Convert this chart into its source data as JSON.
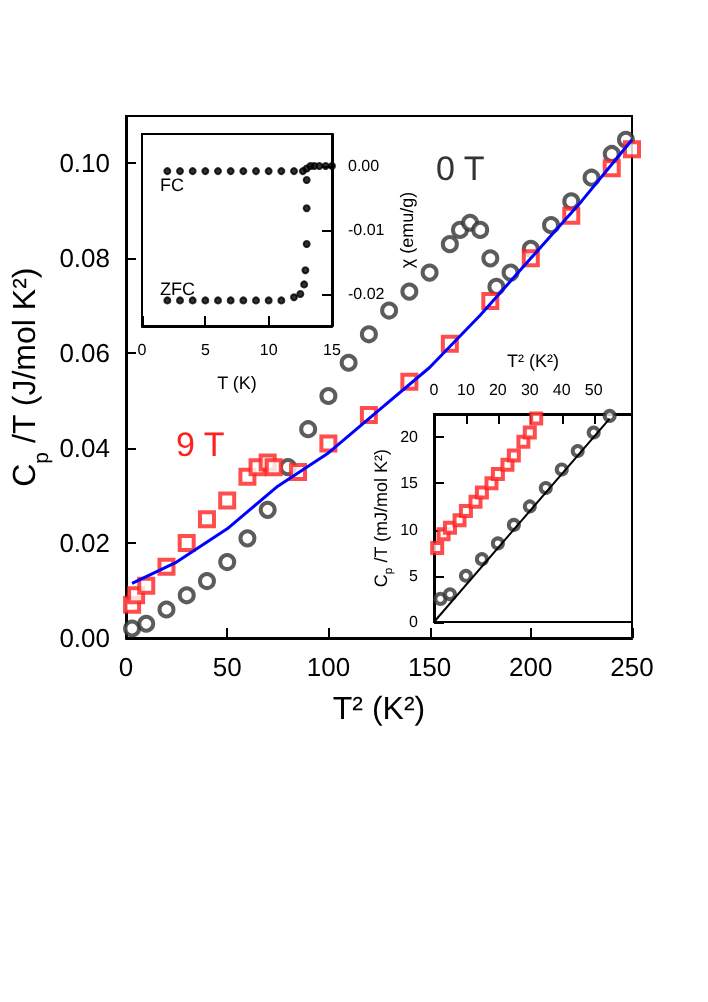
{
  "chart_data": [
    {
      "type": "scatter",
      "xlabel": "T² (K²)",
      "ylabel": "C$_{p}$ /T (J/mol K²)",
      "xlim": [
        0,
        250
      ],
      "ylim": [
        0,
        0.11
      ],
      "xticks": [
        0,
        50,
        100,
        150,
        200,
        250
      ],
      "yticks": [
        {
          "value": 0,
          "label": "0.00"
        },
        {
          "value": 0.02,
          "label": "0.02"
        },
        {
          "value": 0.04,
          "label": "0.04"
        },
        {
          "value": 0.06,
          "label": "0.06"
        },
        {
          "value": 0.08,
          "label": "0.08"
        },
        {
          "value": 0.1,
          "label": "0.10"
        }
      ],
      "grid": false,
      "legend": false,
      "series": [
        {
          "name": "0 T",
          "color": "#333333",
          "marker": "circle",
          "x": [
            3,
            10,
            20,
            30,
            40,
            50,
            60,
            70,
            80,
            90,
            100,
            110,
            120,
            130,
            140,
            150,
            160,
            165,
            170,
            175,
            180,
            183,
            190,
            200,
            210,
            220,
            230,
            240,
            247
          ],
          "values": [
            0.002,
            0.003,
            0.006,
            0.009,
            0.012,
            0.016,
            0.021,
            0.027,
            0.036,
            0.044,
            0.051,
            0.058,
            0.064,
            0.069,
            0.073,
            0.077,
            0.083,
            0.086,
            0.0875,
            0.086,
            0.08,
            0.074,
            0.077,
            0.082,
            0.087,
            0.092,
            0.097,
            0.102,
            0.105
          ]
        },
        {
          "name": "9 T",
          "color": "#ff2020",
          "marker": "square",
          "x": [
            3,
            5,
            10,
            20,
            30,
            40,
            50,
            60,
            65,
            70,
            73,
            85,
            100,
            120,
            140,
            160,
            180,
            200,
            220,
            240,
            250
          ],
          "values": [
            0.007,
            0.009,
            0.011,
            0.015,
            0.02,
            0.025,
            0.029,
            0.034,
            0.036,
            0.037,
            0.036,
            0.035,
            0.041,
            0.047,
            0.054,
            0.062,
            0.071,
            0.08,
            0.089,
            0.099,
            0.103
          ]
        },
        {
          "type": "line",
          "color": "#0000ff",
          "marker": "none",
          "x": [
            3,
            25,
            50,
            75,
            100,
            125,
            150,
            175,
            200,
            225,
            250
          ],
          "values": [
            0.0115,
            0.016,
            0.023,
            0.032,
            0.039,
            0.048,
            0.057,
            0.068,
            0.08,
            0.092,
            0.105
          ]
        }
      ]
    },
    {
      "type": "scatter",
      "xlabel": "T (K)",
      "ylabel": "χ (emu/g)",
      "xlim": [
        0,
        15
      ],
      "ylim": [
        -0.025,
        0.005
      ],
      "xticks": [
        0,
        5,
        10,
        15
      ],
      "yticks": [
        {
          "value": 0,
          "label": "0.00"
        },
        {
          "value": -0.01,
          "label": "-0.01"
        },
        {
          "value": -0.02,
          "label": "-0.02"
        }
      ],
      "grid": false,
      "legend": false,
      "series": [
        {
          "name": "FC",
          "color": "#000000",
          "marker": "circle",
          "x": [
            2,
            3,
            4,
            5,
            6,
            7,
            8,
            9,
            10,
            11,
            12,
            12.7,
            13,
            13.3,
            13.6,
            14,
            14.5,
            15
          ],
          "values": [
            -0.0008,
            -0.0008,
            -0.0008,
            -0.0008,
            -0.0008,
            -0.0008,
            -0.0008,
            -0.0008,
            -0.0008,
            -0.0008,
            -0.0008,
            -0.0008,
            -0.0004,
            0,
            0,
            0,
            0,
            0
          ]
        },
        {
          "name": "ZFC",
          "color": "#000000",
          "marker": "circle",
          "x": [
            2,
            3,
            4,
            5,
            6,
            7,
            8,
            9,
            10,
            11,
            12,
            12.5,
            12.8,
            12.9,
            13,
            13,
            13
          ],
          "values": [
            -0.021,
            -0.021,
            -0.021,
            -0.021,
            -0.021,
            -0.021,
            -0.021,
            -0.021,
            -0.021,
            -0.021,
            -0.0205,
            -0.02,
            -0.0185,
            -0.0163,
            -0.0122,
            -0.0066,
            -0.0022
          ]
        }
      ]
    },
    {
      "type": "scatter",
      "xlabel": "T² (K²)",
      "ylabel": "C$_{p}$ /T (mJ/mol K²)",
      "xlim": [
        0,
        62
      ],
      "ylim": [
        0,
        22.5
      ],
      "xticks": [
        0,
        10,
        20,
        30,
        40,
        50
      ],
      "yticks": [
        0,
        5,
        10,
        15,
        20
      ],
      "grid": false,
      "legend": false,
      "series": [
        {
          "color": "#333333",
          "marker": "circle",
          "x": [
            2,
            5,
            10,
            15,
            20,
            25,
            30,
            35,
            40,
            45,
            50,
            55
          ],
          "values": [
            2.5,
            3,
            5,
            6.8,
            8.5,
            10.5,
            12.5,
            14.5,
            16.5,
            18.5,
            20.5,
            22.3
          ]
        },
        {
          "color": "#ff2020",
          "marker": "square",
          "x": [
            1,
            3,
            5,
            8,
            10,
            13,
            15,
            18,
            20,
            23,
            25,
            28,
            30,
            32
          ],
          "values": [
            8,
            9.5,
            10.2,
            11,
            12,
            13,
            14,
            15,
            16,
            17,
            18,
            19.5,
            20.5,
            22
          ]
        },
        {
          "type": "line",
          "color": "#000000",
          "marker": "none",
          "x": [
            0,
            55
          ],
          "values": [
            0,
            22
          ]
        }
      ]
    }
  ]
}
